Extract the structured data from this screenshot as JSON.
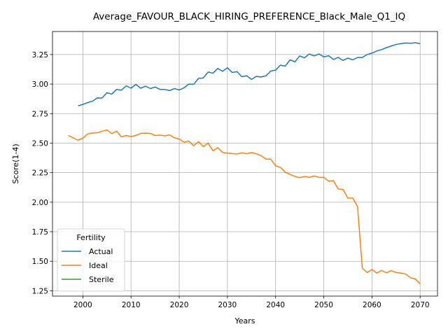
{
  "chart_data": {
    "type": "line",
    "title": "Average_FAVOUR_BLACK_HIRING_PREFERENCE_Black_Male_Q1_IQ",
    "xlabel": "Years",
    "ylabel": "Score(1-4)",
    "xlim": [
      1993.7,
      2073.6
    ],
    "ylim": [
      1.205,
      3.445
    ],
    "xticks": [
      2000,
      2010,
      2020,
      2030,
      2040,
      2050,
      2060,
      2070
    ],
    "yticks": [
      1.25,
      1.5,
      1.75,
      2.0,
      2.25,
      2.5,
      2.75,
      3.0,
      3.25
    ],
    "ytick_labels": [
      "1.25",
      "1.50",
      "1.75",
      "2.00",
      "2.25",
      "2.50",
      "2.75",
      "3.00",
      "3.25"
    ],
    "grid": true,
    "legend": {
      "title": "Fertility",
      "placement": "lower-left"
    },
    "series": [
      {
        "name": "Actual",
        "color": "#1f77b4",
        "x": [
          1999,
          2000,
          2001,
          2002,
          2003,
          2004,
          2005,
          2006,
          2007,
          2008,
          2009,
          2010,
          2011,
          2012,
          2013,
          2014,
          2015,
          2016,
          2017,
          2018,
          2019,
          2020,
          2021,
          2022,
          2023,
          2024,
          2025,
          2026,
          2027,
          2028,
          2029,
          2030,
          2031,
          2032,
          2033,
          2034,
          2035,
          2036,
          2037,
          2038,
          2039,
          2040,
          2041,
          2042,
          2043,
          2044,
          2045,
          2046,
          2047,
          2048,
          2049,
          2050,
          2051,
          2052,
          2053,
          2054,
          2055,
          2056,
          2057,
          2058,
          2059,
          2060,
          2061,
          2062,
          2063,
          2064,
          2065,
          2066,
          2067,
          2068,
          2069,
          2070
        ],
        "values": [
          2.815,
          2.828,
          2.843,
          2.855,
          2.883,
          2.882,
          2.927,
          2.915,
          2.955,
          2.948,
          2.985,
          2.965,
          2.997,
          2.965,
          2.982,
          2.962,
          2.975,
          2.955,
          2.955,
          2.945,
          2.962,
          2.95,
          2.968,
          3.0,
          2.998,
          3.048,
          3.052,
          3.102,
          3.092,
          3.132,
          3.108,
          3.138,
          3.098,
          3.105,
          3.062,
          3.07,
          3.04,
          3.065,
          3.06,
          3.07,
          3.11,
          3.118,
          3.16,
          3.152,
          3.205,
          3.188,
          3.238,
          3.222,
          3.255,
          3.238,
          3.255,
          3.23,
          3.24,
          3.208,
          3.225,
          3.2,
          3.22,
          3.205,
          3.225,
          3.225,
          3.25,
          3.262,
          3.28,
          3.292,
          3.308,
          3.322,
          3.335,
          3.342,
          3.348,
          3.345,
          3.35,
          3.342
        ]
      },
      {
        "name": "Ideal",
        "color": "#ff7f0e",
        "x": [
          1997,
          1998,
          1999,
          2000,
          2001,
          2002,
          2003,
          2004,
          2005,
          2006,
          2007,
          2008,
          2009,
          2010,
          2011,
          2012,
          2013,
          2014,
          2015,
          2016,
          2017,
          2018,
          2019,
          2020,
          2021,
          2022,
          2023,
          2024,
          2025,
          2026,
          2027,
          2028,
          2029,
          2030,
          2031,
          2032,
          2033,
          2034,
          2035,
          2036,
          2037,
          2038,
          2039,
          2040,
          2041,
          2042,
          2043,
          2044,
          2045,
          2046,
          2047,
          2048,
          2049,
          2050,
          2051,
          2052,
          2053,
          2054,
          2055,
          2056,
          2057,
          2058,
          2059,
          2060,
          2061,
          2062,
          2063,
          2064,
          2065,
          2066,
          2067,
          2068,
          2069,
          2070
        ],
        "values": [
          2.565,
          2.545,
          2.525,
          2.542,
          2.578,
          2.585,
          2.588,
          2.6,
          2.612,
          2.58,
          2.602,
          2.552,
          2.565,
          2.555,
          2.565,
          2.582,
          2.585,
          2.582,
          2.565,
          2.568,
          2.562,
          2.57,
          2.545,
          2.535,
          2.508,
          2.518,
          2.478,
          2.512,
          2.47,
          2.5,
          2.435,
          2.462,
          2.422,
          2.415,
          2.412,
          2.408,
          2.418,
          2.41,
          2.42,
          2.41,
          2.395,
          2.365,
          2.365,
          2.308,
          2.295,
          2.255,
          2.235,
          2.218,
          2.208,
          2.218,
          2.21,
          2.222,
          2.21,
          2.21,
          2.178,
          2.182,
          2.112,
          2.108,
          2.035,
          2.035,
          1.965,
          1.442,
          1.405,
          1.43,
          1.4,
          1.422,
          1.402,
          1.42,
          1.405,
          1.4,
          1.392,
          1.36,
          1.35,
          1.31
        ]
      },
      {
        "name": "Sterile",
        "color": "#2ca02c",
        "x": [],
        "values": []
      }
    ]
  }
}
